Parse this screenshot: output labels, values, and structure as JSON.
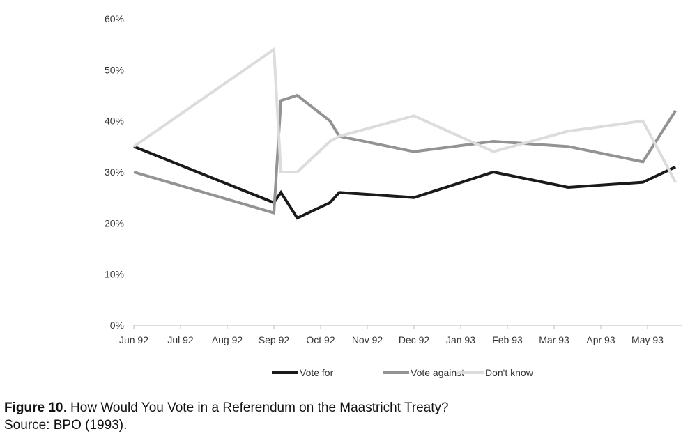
{
  "chart_data": {
    "type": "line",
    "x_ticks": [
      "Jun 92",
      "Jul 92",
      "Aug 92",
      "Sep 92",
      "Oct 92",
      "Nov 92",
      "Dec 92",
      "Jan 93",
      "Feb 93",
      "Mar 93",
      "Apr 93",
      "May 93"
    ],
    "y_ticks": [
      "0%",
      "10%",
      "20%",
      "30%",
      "40%",
      "50%",
      "60%"
    ],
    "ylim": [
      0,
      60
    ],
    "grid": false,
    "legend_position": "bottom",
    "series": [
      {
        "name": "Vote for",
        "color": "#1a1a1a",
        "points": [
          [
            0,
            35
          ],
          [
            3,
            24
          ],
          [
            3.15,
            26
          ],
          [
            3.5,
            21
          ],
          [
            4.2,
            24
          ],
          [
            4.4,
            26
          ],
          [
            6,
            25
          ],
          [
            7.7,
            30
          ],
          [
            9.3,
            27
          ],
          [
            10.9,
            28
          ],
          [
            11.6,
            31
          ]
        ]
      },
      {
        "name": "Vote against",
        "color": "#939393",
        "points": [
          [
            0,
            30
          ],
          [
            3,
            22
          ],
          [
            3.15,
            44
          ],
          [
            3.5,
            45
          ],
          [
            4.2,
            40
          ],
          [
            4.4,
            37
          ],
          [
            6,
            34
          ],
          [
            7.7,
            36
          ],
          [
            9.3,
            35
          ],
          [
            10.9,
            32
          ],
          [
            11.6,
            42
          ]
        ]
      },
      {
        "name": "Don't know",
        "color": "#dcdcdc",
        "points": [
          [
            0,
            35
          ],
          [
            3,
            54
          ],
          [
            3.15,
            30
          ],
          [
            3.5,
            30
          ],
          [
            4.2,
            36
          ],
          [
            4.4,
            37
          ],
          [
            6,
            41
          ],
          [
            7.7,
            34
          ],
          [
            9.3,
            38
          ],
          [
            10.9,
            40
          ],
          [
            11.6,
            28
          ]
        ]
      }
    ]
  },
  "caption": {
    "figure_label": "Figure 10",
    "title_text": ". How Would You Vote in a Referendum on the Maastricht Treaty?",
    "source": "Source: BPO (1993)."
  }
}
